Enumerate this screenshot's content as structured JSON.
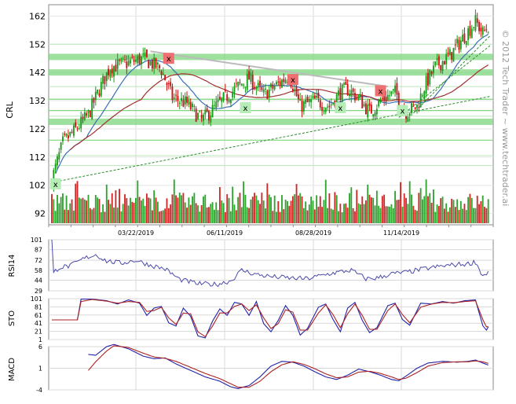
{
  "watermark": "© 2012 Tech Trader ~ www.techtrader.ai",
  "colors": {
    "up": "#1a9a1a",
    "down": "#cc1111",
    "ma_fast": "#3b6fb6",
    "ma_slow": "#a23030",
    "support": "#7ed67e",
    "trend": "#2e8b2e",
    "resistance": "#bbbbbb",
    "marker_sell": "#ee6f6f",
    "marker_buy": "#b6ecb6",
    "rsi": "#4a4aaa",
    "sto_k": "#2222aa",
    "sto_d": "#aa2222",
    "grid": "#d8d8d8"
  },
  "chart_data": [
    {
      "type": "candlestick",
      "panel": "price",
      "ylabel": "CRL",
      "yticks": [
        162,
        152,
        142,
        132,
        122,
        112,
        102,
        92
      ],
      "ylim": [
        88,
        166
      ],
      "date_labels": [
        "03/22/2019",
        "06/11/2019",
        "08/28/2019",
        "11/14/2019"
      ],
      "num_bars": 240,
      "close_anchors": [
        [
          0,
          104
        ],
        [
          6,
          117
        ],
        [
          12,
          121
        ],
        [
          20,
          127
        ],
        [
          26,
          136
        ],
        [
          32,
          144
        ],
        [
          40,
          145
        ],
        [
          50,
          147
        ],
        [
          60,
          143
        ],
        [
          66,
          133
        ],
        [
          74,
          131
        ],
        [
          82,
          125
        ],
        [
          90,
          130
        ],
        [
          100,
          136
        ],
        [
          108,
          140
        ],
        [
          116,
          134
        ],
        [
          124,
          138
        ],
        [
          130,
          141
        ],
        [
          136,
          130
        ],
        [
          144,
          132
        ],
        [
          152,
          130
        ],
        [
          158,
          135
        ],
        [
          162,
          136
        ],
        [
          168,
          133
        ],
        [
          174,
          128
        ],
        [
          182,
          133
        ],
        [
          188,
          135
        ],
        [
          194,
          128
        ],
        [
          200,
          130
        ],
        [
          204,
          137
        ],
        [
          210,
          144
        ],
        [
          218,
          148
        ],
        [
          226,
          155
        ],
        [
          232,
          160
        ],
        [
          236,
          156
        ],
        [
          240,
          159
        ]
      ],
      "support_zones": [
        142,
        147.5,
        124.5
      ],
      "support_levels": [
        128.5,
        132.5,
        118
      ],
      "resistance_line": [
        [
          54,
          149.5
        ],
        [
          184,
          137
        ]
      ],
      "trend_lines": [
        [
          [
            0,
            103
          ],
          [
            240,
            133.5
          ]
        ],
        [
          [
            190,
            126
          ],
          [
            240,
            151.5
          ]
        ],
        [
          [
            198,
            127.5
          ],
          [
            240,
            155
          ]
        ]
      ],
      "markers": [
        {
          "type": "sell",
          "label": "x",
          "bar": 64,
          "price": 147
        },
        {
          "type": "sell",
          "label": "x",
          "bar": 132,
          "price": 139.5
        },
        {
          "type": "sell",
          "label": "x",
          "bar": 180,
          "price": 135.5
        },
        {
          "type": "buy",
          "label": "x",
          "bar": 2,
          "price": 102.5
        },
        {
          "type": "buy",
          "label": "x",
          "bar": 106,
          "price": 129.5
        },
        {
          "type": "buy",
          "label": "x",
          "bar": 158,
          "price": 129.5
        },
        {
          "type": "buy",
          "label": "x",
          "bar": 192,
          "price": 128.5
        }
      ],
      "volume_max": 100
    },
    {
      "type": "line",
      "panel": "rsi",
      "ylabel": "RSI14",
      "yticks": [
        101,
        87,
        72,
        58,
        44,
        29
      ],
      "ylim": [
        29,
        101
      ],
      "anchors": [
        [
          0,
          101
        ],
        [
          1,
          55
        ],
        [
          4,
          62
        ],
        [
          10,
          64
        ],
        [
          18,
          75
        ],
        [
          24,
          80
        ],
        [
          30,
          71
        ],
        [
          38,
          68
        ],
        [
          46,
          72
        ],
        [
          54,
          65
        ],
        [
          62,
          60
        ],
        [
          70,
          45
        ],
        [
          80,
          39
        ],
        [
          90,
          38
        ],
        [
          98,
          43
        ],
        [
          104,
          58
        ],
        [
          112,
          52
        ],
        [
          120,
          49
        ],
        [
          130,
          47
        ],
        [
          140,
          46
        ],
        [
          150,
          52
        ],
        [
          156,
          55
        ],
        [
          164,
          58
        ],
        [
          172,
          46
        ],
        [
          178,
          47
        ],
        [
          186,
          53
        ],
        [
          194,
          55
        ],
        [
          204,
          60
        ],
        [
          214,
          64
        ],
        [
          222,
          66
        ],
        [
          228,
          67
        ],
        [
          232,
          70
        ],
        [
          236,
          50
        ],
        [
          240,
          57
        ]
      ]
    },
    {
      "type": "line",
      "panel": "sto",
      "ylabel": "STO",
      "yticks": [
        101,
        81,
        61,
        41,
        21,
        1
      ],
      "ylim": [
        1,
        101
      ],
      "series": [
        {
          "anchors": [
            [
              0,
              49
            ],
            [
              14,
              49
            ],
            [
              16,
              100
            ],
            [
              22,
              100
            ],
            [
              30,
              96
            ],
            [
              36,
              88
            ],
            [
              42,
              98
            ],
            [
              48,
              90
            ],
            [
              52,
              60
            ],
            [
              56,
              78
            ],
            [
              60,
              82
            ],
            [
              64,
              42
            ],
            [
              68,
              34
            ],
            [
              72,
              78
            ],
            [
              76,
              58
            ],
            [
              80,
              10
            ],
            [
              84,
              5
            ],
            [
              88,
              46
            ],
            [
              92,
              76
            ],
            [
              96,
              60
            ],
            [
              100,
              92
            ],
            [
              104,
              88
            ],
            [
              108,
              60
            ],
            [
              112,
              94
            ],
            [
              116,
              40
            ],
            [
              120,
              20
            ],
            [
              124,
              48
            ],
            [
              128,
              84
            ],
            [
              132,
              60
            ],
            [
              136,
              12
            ],
            [
              140,
              28
            ],
            [
              146,
              80
            ],
            [
              150,
              88
            ],
            [
              154,
              50
            ],
            [
              158,
              20
            ],
            [
              162,
              78
            ],
            [
              166,
              92
            ],
            [
              170,
              48
            ],
            [
              174,
              18
            ],
            [
              178,
              30
            ],
            [
              184,
              84
            ],
            [
              188,
              90
            ],
            [
              192,
              50
            ],
            [
              196,
              36
            ],
            [
              202,
              90
            ],
            [
              208,
              88
            ],
            [
              214,
              94
            ],
            [
              220,
              90
            ],
            [
              226,
              96
            ],
            [
              232,
              98
            ],
            [
              236,
              35
            ],
            [
              238,
              24
            ],
            [
              240,
              40
            ]
          ]
        },
        {
          "anchors": [
            [
              0,
              49
            ],
            [
              14,
              49
            ],
            [
              16,
              94
            ],
            [
              22,
              99
            ],
            [
              30,
              95
            ],
            [
              36,
              90
            ],
            [
              42,
              94
            ],
            [
              48,
              92
            ],
            [
              52,
              70
            ],
            [
              56,
              72
            ],
            [
              60,
              80
            ],
            [
              64,
              54
            ],
            [
              68,
              38
            ],
            [
              72,
              66
            ],
            [
              76,
              64
            ],
            [
              80,
              20
            ],
            [
              84,
              8
            ],
            [
              88,
              34
            ],
            [
              92,
              66
            ],
            [
              96,
              66
            ],
            [
              100,
              82
            ],
            [
              104,
              88
            ],
            [
              108,
              72
            ],
            [
              112,
              86
            ],
            [
              116,
              54
            ],
            [
              120,
              28
            ],
            [
              124,
              40
            ],
            [
              128,
              74
            ],
            [
              132,
              68
            ],
            [
              136,
              24
            ],
            [
              140,
              24
            ],
            [
              146,
              66
            ],
            [
              150,
              86
            ],
            [
              154,
              62
            ],
            [
              158,
              30
            ],
            [
              162,
              64
            ],
            [
              166,
              88
            ],
            [
              170,
              60
            ],
            [
              174,
              26
            ],
            [
              178,
              26
            ],
            [
              184,
              72
            ],
            [
              188,
              88
            ],
            [
              192,
              62
            ],
            [
              196,
              42
            ],
            [
              202,
              80
            ],
            [
              208,
              88
            ],
            [
              214,
              92
            ],
            [
              220,
              91
            ],
            [
              226,
              94
            ],
            [
              232,
              96
            ],
            [
              236,
              50
            ],
            [
              238,
              32
            ],
            [
              240,
              34
            ]
          ]
        }
      ]
    },
    {
      "type": "line",
      "panel": "macd",
      "ylabel": "MACD",
      "yticks": [
        6,
        1,
        -4
      ],
      "ylim": [
        -4,
        6
      ],
      "series": [
        {
          "anchors": [
            [
              20,
              4.2
            ],
            [
              24,
              4.0
            ],
            [
              30,
              6.0
            ],
            [
              34,
              6.5
            ],
            [
              42,
              5.5
            ],
            [
              50,
              3.8
            ],
            [
              56,
              3.2
            ],
            [
              62,
              3.4
            ],
            [
              68,
              2.0
            ],
            [
              76,
              0.5
            ],
            [
              84,
              -1.0
            ],
            [
              92,
              -2.0
            ],
            [
              98,
              -3.3
            ],
            [
              102,
              -3.7
            ],
            [
              108,
              -3.0
            ],
            [
              114,
              -1.0
            ],
            [
              120,
              1.5
            ],
            [
              126,
              2.6
            ],
            [
              132,
              2.4
            ],
            [
              138,
              1.5
            ],
            [
              144,
              0.2
            ],
            [
              150,
              -1.0
            ],
            [
              156,
              -1.6
            ],
            [
              162,
              -0.6
            ],
            [
              168,
              0.8
            ],
            [
              174,
              0.2
            ],
            [
              180,
              -0.6
            ],
            [
              186,
              -1.6
            ],
            [
              190,
              -1.9
            ],
            [
              194,
              -0.8
            ],
            [
              200,
              1.0
            ],
            [
              206,
              2.2
            ],
            [
              214,
              2.6
            ],
            [
              222,
              2.4
            ],
            [
              228,
              2.6
            ],
            [
              232,
              2.9
            ],
            [
              236,
              2.2
            ],
            [
              240,
              1.6
            ]
          ]
        },
        {
          "anchors": [
            [
              20,
              0.5
            ],
            [
              24,
              2.5
            ],
            [
              30,
              5.0
            ],
            [
              34,
              6.2
            ],
            [
              42,
              5.8
            ],
            [
              50,
              4.5
            ],
            [
              56,
              3.6
            ],
            [
              62,
              3.3
            ],
            [
              68,
              2.6
            ],
            [
              76,
              1.2
            ],
            [
              84,
              -0.2
            ],
            [
              92,
              -1.4
            ],
            [
              98,
              -2.6
            ],
            [
              102,
              -3.4
            ],
            [
              108,
              -3.4
            ],
            [
              114,
              -2.0
            ],
            [
              120,
              0.2
            ],
            [
              126,
              1.8
            ],
            [
              132,
              2.5
            ],
            [
              138,
              1.9
            ],
            [
              144,
              0.9
            ],
            [
              150,
              -0.3
            ],
            [
              156,
              -1.2
            ],
            [
              162,
              -1.0
            ],
            [
              168,
              0.1
            ],
            [
              174,
              0.3
            ],
            [
              180,
              -0.2
            ],
            [
              186,
              -1.0
            ],
            [
              190,
              -1.6
            ],
            [
              194,
              -1.3
            ],
            [
              200,
              0.0
            ],
            [
              206,
              1.5
            ],
            [
              214,
              2.3
            ],
            [
              222,
              2.5
            ],
            [
              228,
              2.5
            ],
            [
              232,
              2.7
            ],
            [
              236,
              2.5
            ],
            [
              240,
              2.0
            ]
          ]
        }
      ]
    }
  ]
}
